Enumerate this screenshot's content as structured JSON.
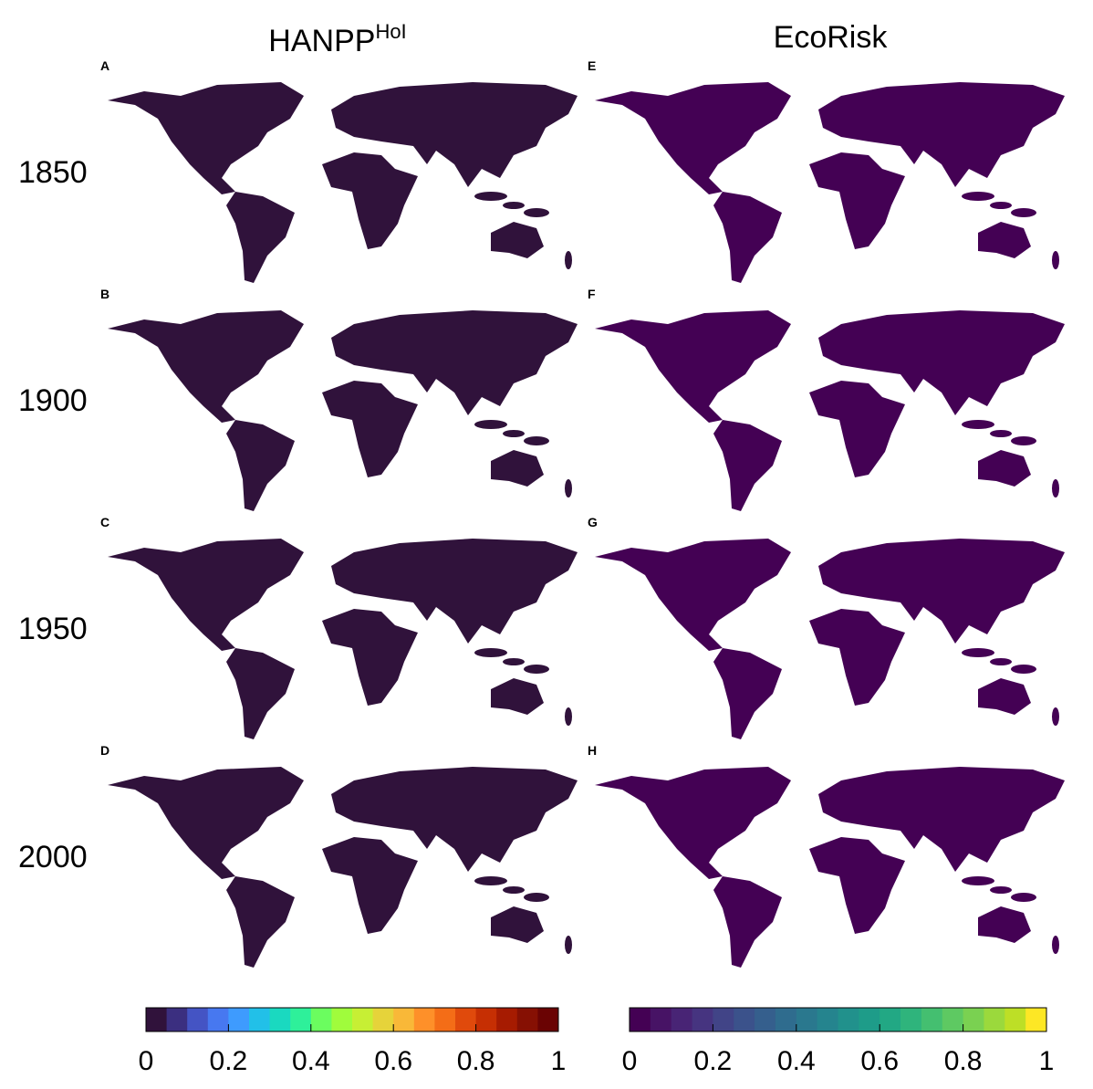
{
  "figure": {
    "columns": [
      {
        "title": "HANPP",
        "title_superscript": "HoI",
        "letters": [
          "A",
          "B",
          "C",
          "D"
        ]
      },
      {
        "title": "EcoRisk",
        "letters": [
          "E",
          "F",
          "G",
          "H"
        ]
      }
    ],
    "rows": [
      "1850",
      "1900",
      "1950",
      "2000"
    ],
    "colorbars": [
      {
        "lim": [
          0,
          1
        ],
        "ticks": [
          0,
          0.2,
          0.4,
          0.6,
          0.8,
          1
        ],
        "colors": [
          "#30123b",
          "#3b2f80",
          "#4454c4",
          "#4778f0",
          "#3e9bfe",
          "#22c0e8",
          "#1ad9c0",
          "#2ef09a",
          "#6bfd5f",
          "#a0fc3c",
          "#c7ef34",
          "#e6d33a",
          "#f9b838",
          "#fe9029",
          "#f46d17",
          "#e04a0c",
          "#c62f03",
          "#a61b01",
          "#861003",
          "#6a0303"
        ]
      },
      {
        "lim": [
          0,
          1
        ],
        "ticks": [
          0,
          0.2,
          0.4,
          0.6,
          0.8,
          1
        ],
        "colors": [
          "#440154",
          "#471365",
          "#482475",
          "#463480",
          "#414487",
          "#3b528b",
          "#355f8d",
          "#2f6c8e",
          "#2a788e",
          "#25848e",
          "#21918c",
          "#1e9c89",
          "#22a884",
          "#2fb47c",
          "#44bf70",
          "#5ec962",
          "#7ad151",
          "#9bd93c",
          "#bddf26",
          "#fde725"
        ]
      }
    ]
  }
}
